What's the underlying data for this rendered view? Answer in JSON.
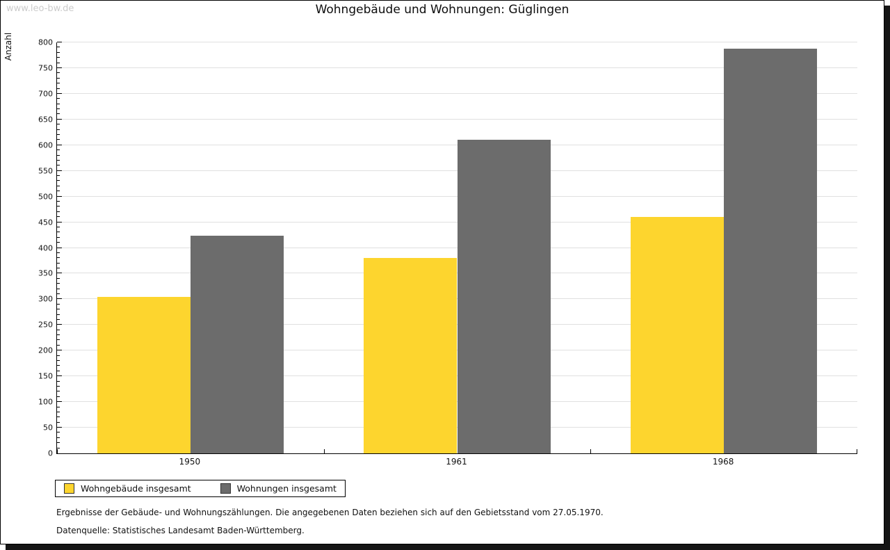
{
  "watermark": "www.leo-bw.de",
  "notes": {
    "line1": "Ergebnisse der Gebäude- und Wohnungszählungen. Die angegebenen Daten beziehen sich auf den Gebietsstand vom 27.05.1970.",
    "line2": "Datenquelle: Statistisches Landesamt Baden-Württemberg."
  },
  "chart_data": {
    "type": "bar",
    "title": "Wohngebäude und Wohnungen: Güglingen",
    "categories": [
      "1950",
      "1961",
      "1968"
    ],
    "series": [
      {
        "name": "Wohngebäude insgesamt",
        "color": "#FDD52E",
        "values": [
          305,
          380,
          460
        ]
      },
      {
        "name": "Wohnungen insgesamt",
        "color": "#6C6C6C",
        "values": [
          424,
          611,
          788
        ]
      }
    ],
    "xlabel": "",
    "ylabel": "Anzahl",
    "ylim": [
      0,
      800
    ],
    "y_tick_step": 50,
    "y_minor_tick_step": 10,
    "grid": "horizontal",
    "gridline_color": "#e0e0e0",
    "legend_position": "bottom-left",
    "axis_color": "#000000"
  }
}
